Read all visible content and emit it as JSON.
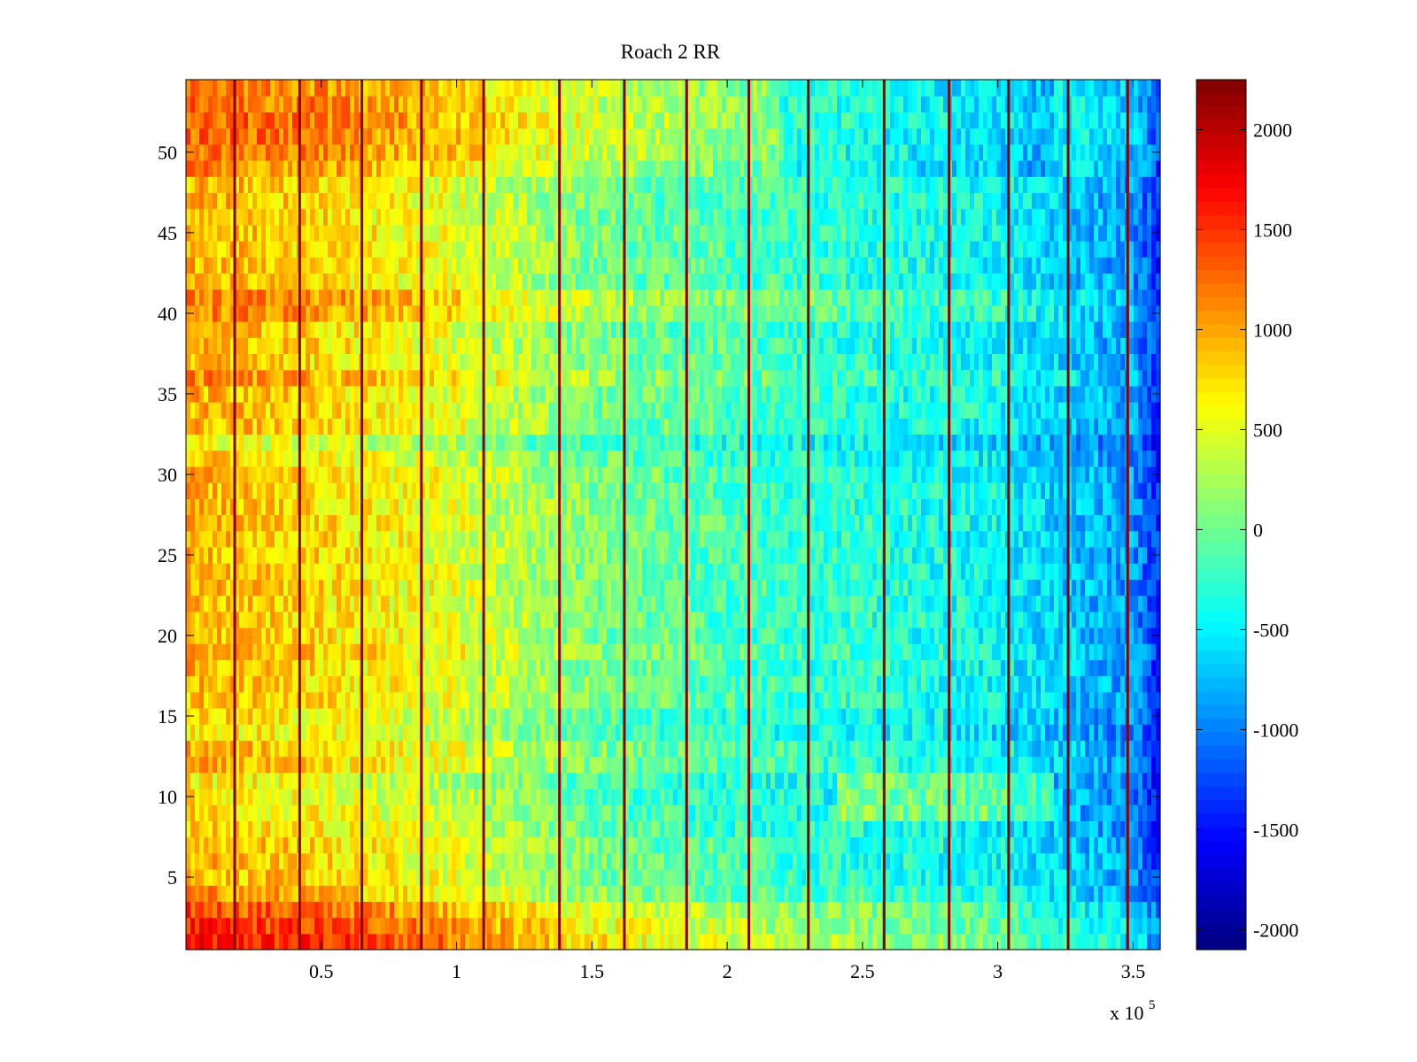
{
  "chart_data": {
    "type": "heatmap",
    "title": "Roach 2 RR",
    "xlabel": "",
    "ylabel": "",
    "x_range": [
      0,
      360000
    ],
    "y_range": [
      0.5,
      54.5
    ],
    "x_ticks": [
      0.5,
      1,
      1.5,
      2,
      2.5,
      3,
      3.5
    ],
    "x_tick_labels": [
      "0.5",
      "1",
      "1.5",
      "2",
      "2.5",
      "3",
      "3.5"
    ],
    "x_exponent_label": "x 10",
    "x_exponent_power": "5",
    "y_ticks": [
      5,
      10,
      15,
      20,
      25,
      30,
      35,
      40,
      45,
      50
    ],
    "y_tick_labels": [
      "5",
      "10",
      "15",
      "20",
      "25",
      "30",
      "35",
      "40",
      "45",
      "50"
    ],
    "colormap": "jet",
    "color_range": [
      -2100,
      2250
    ],
    "colorbar_ticks": [
      2000,
      1500,
      1000,
      500,
      0,
      -500,
      -1000,
      -1500,
      -2000
    ],
    "colorbar_tick_labels": [
      "2000",
      "1500",
      "1000",
      "500",
      "0",
      "-500",
      "-1000",
      "-1500",
      "-2000"
    ],
    "rows": 54,
    "trend_nodes_x": [
      0,
      0.5,
      1.0,
      1.5,
      2.0,
      2.5,
      3.0,
      3.5,
      3.6
    ],
    "trend_nodes_value": [
      950,
      750,
      500,
      50,
      -150,
      -300,
      -450,
      -900,
      -1400
    ],
    "row_offsets": {
      "1": 750,
      "2": 650,
      "3": 500,
      "4": 150,
      "5": 0,
      "8": -100,
      "9": -150,
      "10": -200,
      "11": -250,
      "14": -200,
      "15": -150,
      "18": 0,
      "19": 100,
      "31": -100,
      "32": -300,
      "36": 200,
      "40": 250,
      "41": 300,
      "49": 250,
      "50": 350,
      "51": 400,
      "52": 450,
      "53": 400,
      "54": 350
    },
    "spike_x": [
      0.18,
      0.42,
      0.65,
      0.87,
      1.1,
      1.38,
      1.62,
      1.85,
      2.08,
      2.3,
      2.58,
      2.82,
      3.04,
      3.26,
      3.48
    ],
    "spike_value": 2200
  }
}
